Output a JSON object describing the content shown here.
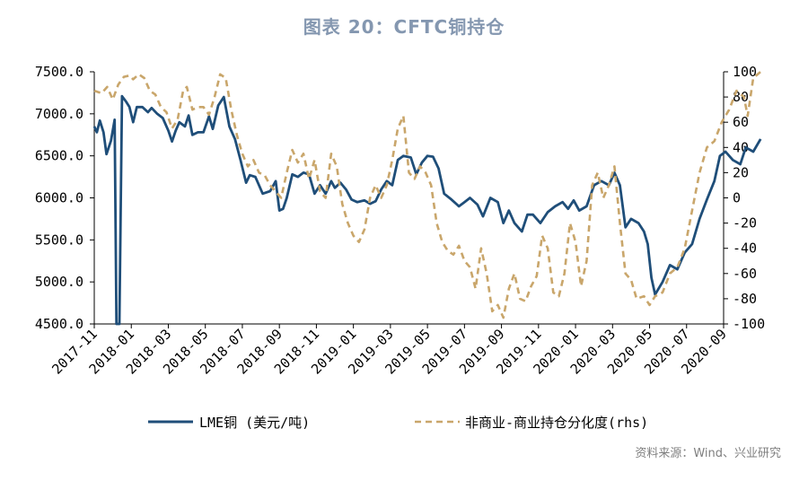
{
  "title": "图表 20：CFTC铜持仓",
  "source": "资料来源：Wind、兴业研究",
  "colors": {
    "lme": "#1F4E79",
    "cftc": "#C9A66B",
    "title": "#8497B0"
  },
  "chart_data": {
    "type": "line",
    "x_ticks": [
      "2017-11",
      "2018-01",
      "2018-03",
      "2018-05",
      "2018-07",
      "2018-09",
      "2018-11",
      "2019-01",
      "2019-03",
      "2019-05",
      "2019-07",
      "2019-09",
      "2019-11",
      "2020-01",
      "2020-03",
      "2020-05",
      "2020-07",
      "2020-09"
    ],
    "y_left": {
      "min": 4500,
      "max": 7500,
      "ticks": [
        "7500.0",
        "7000.0",
        "6500.0",
        "6000.0",
        "5500.0",
        "5000.0",
        "4500.0"
      ]
    },
    "y_right": {
      "min": -100,
      "max": 100,
      "ticks": [
        "100",
        "80",
        "60",
        "40",
        "20",
        "0",
        "-20",
        "-40",
        "-60",
        "-80",
        "-100"
      ]
    },
    "series": [
      {
        "name": "LME铜 (美元/吨)",
        "axis": "left",
        "style": "solid",
        "points": [
          [
            0.0,
            6850
          ],
          [
            0.07,
            6780
          ],
          [
            0.15,
            6920
          ],
          [
            0.25,
            6780
          ],
          [
            0.33,
            6520
          ],
          [
            0.45,
            6680
          ],
          [
            0.55,
            6930
          ],
          [
            0.6,
            4500
          ],
          [
            0.68,
            4500
          ],
          [
            0.75,
            7210
          ],
          [
            0.85,
            7150
          ],
          [
            0.95,
            7080
          ],
          [
            1.05,
            6900
          ],
          [
            1.15,
            7080
          ],
          [
            1.3,
            7080
          ],
          [
            1.45,
            7020
          ],
          [
            1.55,
            7070
          ],
          [
            1.7,
            7000
          ],
          [
            1.85,
            6950
          ],
          [
            2.0,
            6800
          ],
          [
            2.1,
            6670
          ],
          [
            2.2,
            6800
          ],
          [
            2.3,
            6900
          ],
          [
            2.45,
            6850
          ],
          [
            2.55,
            6980
          ],
          [
            2.65,
            6750
          ],
          [
            2.8,
            6780
          ],
          [
            2.95,
            6780
          ],
          [
            3.1,
            6970
          ],
          [
            3.2,
            6820
          ],
          [
            3.35,
            7100
          ],
          [
            3.5,
            7200
          ],
          [
            3.65,
            6850
          ],
          [
            3.8,
            6700
          ],
          [
            3.95,
            6450
          ],
          [
            4.1,
            6180
          ],
          [
            4.2,
            6270
          ],
          [
            4.35,
            6250
          ],
          [
            4.55,
            6050
          ],
          [
            4.75,
            6080
          ],
          [
            4.9,
            6200
          ],
          [
            5.0,
            5850
          ],
          [
            5.1,
            5870
          ],
          [
            5.2,
            6000
          ],
          [
            5.35,
            6280
          ],
          [
            5.5,
            6250
          ],
          [
            5.65,
            6300
          ],
          [
            5.8,
            6280
          ],
          [
            5.95,
            6050
          ],
          [
            6.1,
            6150
          ],
          [
            6.25,
            6050
          ],
          [
            6.4,
            6200
          ],
          [
            6.5,
            6120
          ],
          [
            6.65,
            6180
          ],
          [
            6.8,
            6100
          ],
          [
            6.95,
            5980
          ],
          [
            7.1,
            5950
          ],
          [
            7.3,
            5970
          ],
          [
            7.45,
            5930
          ],
          [
            7.6,
            5960
          ],
          [
            7.75,
            6100
          ],
          [
            7.9,
            6200
          ],
          [
            8.05,
            6150
          ],
          [
            8.2,
            6450
          ],
          [
            8.35,
            6500
          ],
          [
            8.55,
            6480
          ],
          [
            8.7,
            6280
          ],
          [
            8.85,
            6420
          ],
          [
            9.0,
            6500
          ],
          [
            9.15,
            6490
          ],
          [
            9.3,
            6350
          ],
          [
            9.45,
            6050
          ],
          [
            9.65,
            5980
          ],
          [
            9.85,
            5900
          ],
          [
            10.0,
            5950
          ],
          [
            10.15,
            6000
          ],
          [
            10.35,
            5920
          ],
          [
            10.5,
            5780
          ],
          [
            10.7,
            6000
          ],
          [
            10.9,
            5950
          ],
          [
            11.05,
            5700
          ],
          [
            11.2,
            5850
          ],
          [
            11.35,
            5700
          ],
          [
            11.55,
            5600
          ],
          [
            11.7,
            5800
          ],
          [
            11.85,
            5800
          ],
          [
            12.05,
            5700
          ],
          [
            12.25,
            5830
          ],
          [
            12.45,
            5900
          ],
          [
            12.65,
            5950
          ],
          [
            12.8,
            5870
          ],
          [
            12.95,
            5970
          ],
          [
            13.1,
            5850
          ],
          [
            13.3,
            5900
          ],
          [
            13.5,
            6150
          ],
          [
            13.7,
            6200
          ],
          [
            13.9,
            6150
          ],
          [
            14.05,
            6300
          ],
          [
            14.2,
            6150
          ],
          [
            14.35,
            5650
          ],
          [
            14.5,
            5750
          ],
          [
            14.7,
            5700
          ],
          [
            14.85,
            5600
          ],
          [
            14.95,
            5450
          ],
          [
            15.05,
            5050
          ],
          [
            15.15,
            4850
          ],
          [
            15.35,
            5000
          ],
          [
            15.55,
            5200
          ],
          [
            15.75,
            5150
          ],
          [
            15.95,
            5350
          ],
          [
            16.15,
            5450
          ],
          [
            16.35,
            5750
          ],
          [
            16.55,
            5980
          ],
          [
            16.75,
            6200
          ],
          [
            16.9,
            6500
          ],
          [
            17.05,
            6550
          ],
          [
            17.25,
            6450
          ],
          [
            17.45,
            6400
          ],
          [
            17.6,
            6600
          ],
          [
            17.8,
            6550
          ],
          [
            18.0,
            6700
          ]
        ]
      },
      {
        "name": "非商业-商业持仓分化度(rhs)",
        "axis": "right",
        "style": "dashed",
        "points": [
          [
            0.0,
            85
          ],
          [
            0.2,
            83
          ],
          [
            0.35,
            88
          ],
          [
            0.5,
            78
          ],
          [
            0.65,
            90
          ],
          [
            0.8,
            96
          ],
          [
            0.95,
            97
          ],
          [
            1.05,
            94
          ],
          [
            1.2,
            98
          ],
          [
            1.35,
            95
          ],
          [
            1.5,
            85
          ],
          [
            1.65,
            82
          ],
          [
            1.8,
            72
          ],
          [
            1.95,
            68
          ],
          [
            2.1,
            55
          ],
          [
            2.25,
            62
          ],
          [
            2.4,
            85
          ],
          [
            2.5,
            88
          ],
          [
            2.65,
            70
          ],
          [
            2.8,
            72
          ],
          [
            2.95,
            72
          ],
          [
            3.1,
            66
          ],
          [
            3.25,
            80
          ],
          [
            3.4,
            98
          ],
          [
            3.55,
            95
          ],
          [
            3.7,
            70
          ],
          [
            3.85,
            50
          ],
          [
            4.0,
            35
          ],
          [
            4.15,
            25
          ],
          [
            4.3,
            30
          ],
          [
            4.45,
            20
          ],
          [
            4.6,
            18
          ],
          [
            4.75,
            10
          ],
          [
            4.9,
            5
          ],
          [
            5.05,
            0
          ],
          [
            5.2,
            20
          ],
          [
            5.35,
            38
          ],
          [
            5.5,
            28
          ],
          [
            5.65,
            35
          ],
          [
            5.8,
            15
          ],
          [
            5.95,
            30
          ],
          [
            6.1,
            5
          ],
          [
            6.25,
            0
          ],
          [
            6.4,
            35
          ],
          [
            6.55,
            25
          ],
          [
            6.7,
            -5
          ],
          [
            6.85,
            -20
          ],
          [
            7.0,
            -30
          ],
          [
            7.15,
            -35
          ],
          [
            7.3,
            -25
          ],
          [
            7.45,
            0
          ],
          [
            7.6,
            10
          ],
          [
            7.75,
            0
          ],
          [
            7.9,
            10
          ],
          [
            8.05,
            30
          ],
          [
            8.2,
            55
          ],
          [
            8.35,
            65
          ],
          [
            8.5,
            20
          ],
          [
            8.65,
            15
          ],
          [
            8.8,
            25
          ],
          [
            8.95,
            20
          ],
          [
            9.1,
            10
          ],
          [
            9.25,
            -20
          ],
          [
            9.4,
            -35
          ],
          [
            9.55,
            -42
          ],
          [
            9.7,
            -45
          ],
          [
            9.85,
            -38
          ],
          [
            10.0,
            -50
          ],
          [
            10.15,
            -55
          ],
          [
            10.3,
            -72
          ],
          [
            10.45,
            -40
          ],
          [
            10.6,
            -60
          ],
          [
            10.75,
            -90
          ],
          [
            10.9,
            -85
          ],
          [
            11.05,
            -95
          ],
          [
            11.2,
            -72
          ],
          [
            11.35,
            -60
          ],
          [
            11.5,
            -80
          ],
          [
            11.65,
            -82
          ],
          [
            11.8,
            -70
          ],
          [
            11.95,
            -62
          ],
          [
            12.1,
            -30
          ],
          [
            12.25,
            -40
          ],
          [
            12.4,
            -75
          ],
          [
            12.55,
            -78
          ],
          [
            12.7,
            -60
          ],
          [
            12.85,
            -20
          ],
          [
            13.0,
            -35
          ],
          [
            13.15,
            -70
          ],
          [
            13.3,
            -50
          ],
          [
            13.45,
            10
          ],
          [
            13.6,
            20
          ],
          [
            13.75,
            0
          ],
          [
            13.9,
            10
          ],
          [
            14.05,
            25
          ],
          [
            14.2,
            -20
          ],
          [
            14.35,
            -60
          ],
          [
            14.5,
            -65
          ],
          [
            14.65,
            -80
          ],
          [
            14.85,
            -78
          ],
          [
            15.0,
            -85
          ],
          [
            15.15,
            -78
          ],
          [
            15.35,
            -75
          ],
          [
            15.55,
            -60
          ],
          [
            15.75,
            -55
          ],
          [
            15.95,
            -40
          ],
          [
            16.15,
            -10
          ],
          [
            16.35,
            20
          ],
          [
            16.55,
            40
          ],
          [
            16.75,
            45
          ],
          [
            16.95,
            60
          ],
          [
            17.15,
            70
          ],
          [
            17.35,
            85
          ],
          [
            17.55,
            80
          ],
          [
            17.65,
            65
          ],
          [
            17.8,
            95
          ],
          [
            18.0,
            100
          ]
        ]
      }
    ],
    "legend": [
      {
        "label": "LME铜 (美元/吨)",
        "style": "solid"
      },
      {
        "label": "非商业-商业持仓分化度(rhs)",
        "style": "dashed"
      }
    ]
  }
}
